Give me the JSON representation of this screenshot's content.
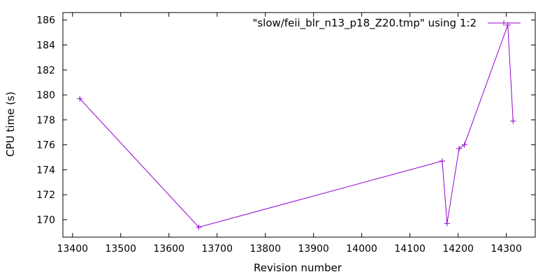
{
  "chart_data": {
    "type": "line",
    "xlabel": "Revision number",
    "ylabel": "CPU time (s)",
    "xlim": [
      13380,
      14360
    ],
    "ylim": [
      168.6,
      186.6
    ],
    "x_ticks": [
      13400,
      13500,
      13600,
      13700,
      13800,
      13900,
      14000,
      14100,
      14200,
      14300
    ],
    "y_ticks": [
      170,
      172,
      174,
      176,
      178,
      180,
      182,
      184,
      186
    ],
    "grid": false,
    "legend_position": "top-right",
    "series": [
      {
        "name": "\"slow/feii_blr_n13_p18_Z20.tmp\" using 1:2",
        "color": "#9400d3",
        "marker": "plus",
        "x": [
          13415,
          13662,
          14167,
          14177,
          14202,
          14213,
          14303,
          14314
        ],
        "y": [
          179.7,
          169.4,
          174.7,
          169.7,
          175.7,
          176.0,
          185.6,
          177.9
        ]
      }
    ]
  }
}
